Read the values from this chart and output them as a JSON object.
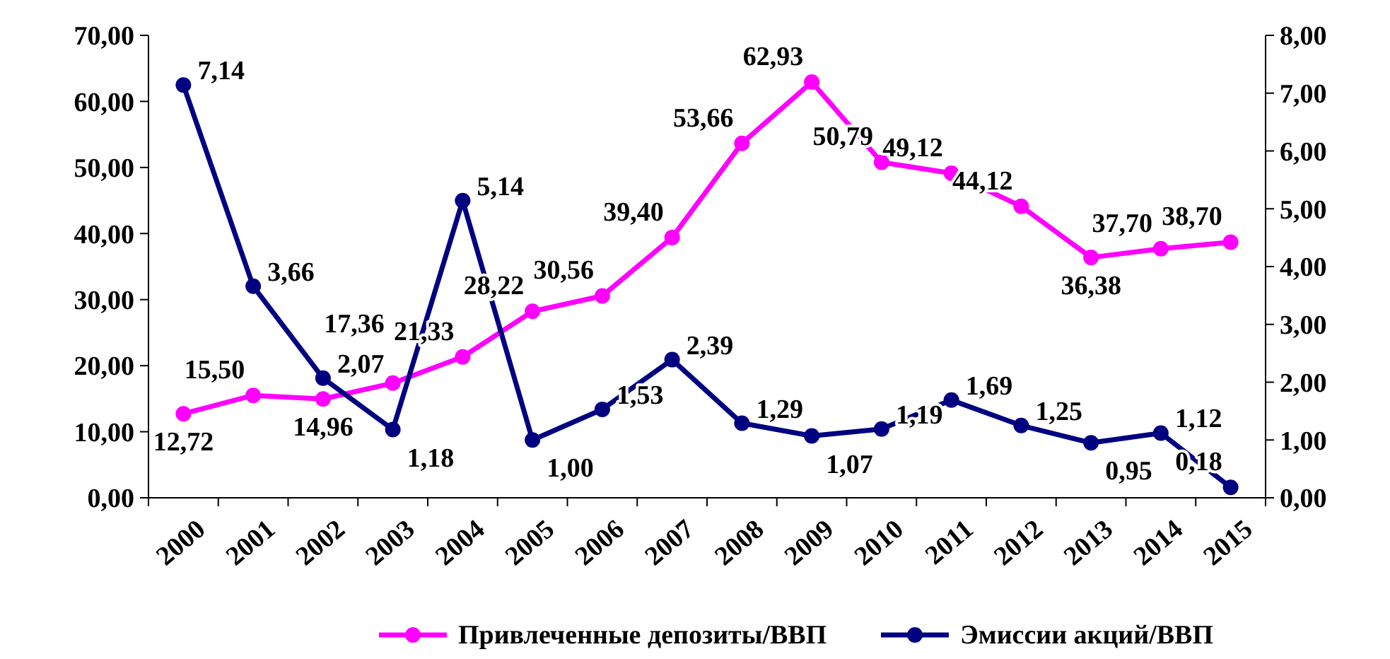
{
  "chart_data": {
    "type": "line",
    "categories": [
      "2000",
      "2001",
      "2002",
      "2003",
      "2004",
      "2005",
      "2006",
      "2007",
      "2008",
      "2009",
      "2010",
      "2011",
      "2012",
      "2013",
      "2014",
      "2015"
    ],
    "series": [
      {
        "name": "Привлеченные депозиты/ВВП",
        "color": "#ff00ff",
        "values": [
          12.72,
          15.5,
          14.96,
          17.36,
          21.33,
          28.22,
          30.56,
          39.4,
          53.66,
          62.93,
          50.79,
          49.12,
          44.12,
          36.38,
          37.7,
          38.7
        ],
        "value_labels": [
          "12,72",
          "15,50",
          "14,96",
          "17,36",
          "21,33",
          "28,22",
          "30,56",
          "39,40",
          "53,66",
          "62,93",
          "50,79",
          "49,12",
          "44,12",
          "36,38",
          "37,70",
          "38,70"
        ]
      },
      {
        "name": "Эмиссии акций/ВВП",
        "color": "#000080",
        "axis": "y2",
        "values": [
          7.14,
          3.66,
          2.07,
          1.18,
          5.14,
          1.0,
          1.53,
          2.39,
          1.29,
          1.07,
          1.19,
          1.69,
          1.25,
          0.95,
          1.12,
          0.18
        ],
        "value_labels": [
          "7,14",
          "3,66",
          "2,07",
          "1,18",
          "5,14",
          "1,00",
          "1,53",
          "2,39",
          "1,29",
          "1,07",
          "1,19",
          "1,69",
          "1,25",
          "0,95",
          "1,12",
          "0,18"
        ]
      }
    ],
    "ylim": [
      0,
      70
    ],
    "yticks": [
      {
        "value": 0,
        "label": "0,00"
      },
      {
        "value": 10,
        "label": "10,00"
      },
      {
        "value": 20,
        "label": "20,00"
      },
      {
        "value": 30,
        "label": "30,00"
      },
      {
        "value": 40,
        "label": "40,00"
      },
      {
        "value": 50,
        "label": "50,00"
      },
      {
        "value": 60,
        "label": "60,00"
      },
      {
        "value": 70,
        "label": "70,00"
      }
    ],
    "y2lim": [
      0,
      8
    ],
    "y2ticks": [
      {
        "value": 0,
        "label": "0,00"
      },
      {
        "value": 1,
        "label": "1,00"
      },
      {
        "value": 2,
        "label": "2,00"
      },
      {
        "value": 3,
        "label": "3,00"
      },
      {
        "value": 4,
        "label": "4,00"
      },
      {
        "value": 5,
        "label": "5,00"
      },
      {
        "value": 6,
        "label": "6,00"
      },
      {
        "value": 7,
        "label": "7,00"
      },
      {
        "value": 8,
        "label": "8,00"
      }
    ],
    "marker": "circle",
    "line_style": "solid",
    "legend": "bottom",
    "grid": false
  }
}
